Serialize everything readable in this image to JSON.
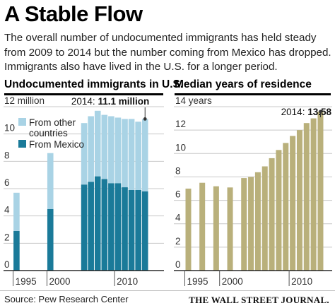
{
  "header": {
    "title": "A Stable Flow",
    "subtitle_lines": [
      "The overall number of undocumented immigrants has held steady",
      "from 2009 to 2014 but the number coming from Mexico has dropped.",
      "Immigrants also have lived in the U.S. for a longer period."
    ]
  },
  "footer": {
    "source": "Source: Pew Research Center",
    "brand": "THE WALL STREET JOURNAL."
  },
  "colors": {
    "mexico": "#1a7a99",
    "other": "#a9d3e5",
    "residence": "#b9b07b"
  },
  "chart_data": [
    {
      "type": "bar",
      "title": "Undocumented immigrants in U.S.",
      "stacked": true,
      "x": [
        1995,
        2000,
        2005,
        2006,
        2007,
        2008,
        2009,
        2010,
        2011,
        2012,
        2013,
        2014
      ],
      "series": [
        {
          "name": "From Mexico",
          "values": [
            2.9,
            4.5,
            6.3,
            6.5,
            6.9,
            6.7,
            6.4,
            6.4,
            6.1,
            5.9,
            5.9,
            5.8
          ]
        },
        {
          "name": "From other countries",
          "values": [
            2.8,
            4.1,
            4.5,
            4.8,
            4.8,
            4.7,
            4.9,
            4.8,
            5.0,
            5.2,
            5.0,
            5.3
          ]
        }
      ],
      "legend": [
        "From other countries",
        "From Mexico"
      ],
      "legend_placement": "top-left",
      "ylim": [
        0,
        12
      ],
      "yticks": [
        0,
        2,
        4,
        6,
        8,
        10,
        12
      ],
      "ytick_labels": [
        "0",
        "2",
        "4",
        "6",
        "8",
        "10",
        "12 million"
      ],
      "xticks": [
        1995,
        2000,
        2010
      ],
      "annotation": {
        "prefix": "2014: ",
        "value": "11.1 million"
      },
      "grid": true
    },
    {
      "type": "bar",
      "title": "Median years of residence",
      "x": [
        1995,
        1997,
        1999,
        2001,
        2003,
        2004,
        2005,
        2006,
        2007,
        2008,
        2009,
        2010,
        2011,
        2012,
        2013,
        2014
      ],
      "values": [
        7.0,
        7.5,
        7.2,
        7.1,
        7.9,
        8.0,
        8.4,
        8.9,
        9.6,
        10.3,
        10.9,
        11.5,
        12.0,
        12.6,
        13.0,
        13.58
      ],
      "ylim": [
        0,
        14
      ],
      "yticks": [
        0,
        2,
        4,
        6,
        8,
        10,
        12,
        14
      ],
      "ytick_labels": [
        "0",
        "2",
        "4",
        "6",
        "8",
        "10",
        "12",
        "14 years"
      ],
      "xticks": [
        1995,
        2000,
        2010
      ],
      "annotation": {
        "prefix": "2014: ",
        "value": "13.58"
      },
      "grid": true
    }
  ]
}
